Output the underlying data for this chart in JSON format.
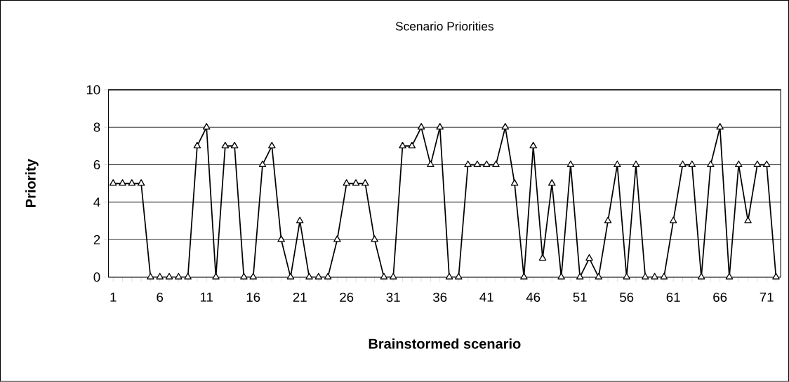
{
  "chart_data": {
    "type": "line",
    "title": "Scenario Priorities",
    "xlabel": "Brainstormed scenario",
    "ylabel": "Priority",
    "categories": [
      "1",
      null,
      null,
      null,
      null,
      "6",
      null,
      null,
      null,
      null,
      "11",
      null,
      null,
      null,
      null,
      "16",
      null,
      null,
      null,
      null,
      "21",
      null,
      null,
      null,
      null,
      "26",
      null,
      null,
      null,
      null,
      "31",
      null,
      null,
      null,
      null,
      "36",
      null,
      null,
      null,
      null,
      "41",
      null,
      null,
      null,
      null,
      "46",
      null,
      null,
      null,
      null,
      "51",
      null,
      null,
      null,
      null,
      "56",
      null,
      null,
      null,
      null,
      "61",
      null,
      null,
      null,
      null,
      "66",
      null,
      null,
      null,
      null,
      "71",
      null
    ],
    "values": [
      5,
      5,
      5,
      5,
      0,
      0,
      0,
      0,
      0,
      7,
      8,
      0,
      7,
      7,
      0,
      0,
      6,
      7,
      2,
      0,
      3,
      0,
      0,
      0,
      2,
      5,
      5,
      5,
      2,
      0,
      0,
      7,
      7,
      8,
      6,
      8,
      0,
      0,
      6,
      6,
      6,
      6,
      8,
      5,
      0,
      7,
      1,
      5,
      0,
      6,
      0,
      1,
      0,
      3,
      6,
      0,
      6,
      0,
      0,
      0,
      3,
      6,
      6,
      0,
      6,
      8,
      0,
      6,
      3,
      6,
      6,
      0
    ],
    "color": "#000000",
    "ylim": [
      0,
      10
    ],
    "yticks": [
      0,
      2,
      4,
      6,
      8,
      10
    ],
    "grid": "y",
    "marker": "triangle",
    "line_style": "solid"
  }
}
